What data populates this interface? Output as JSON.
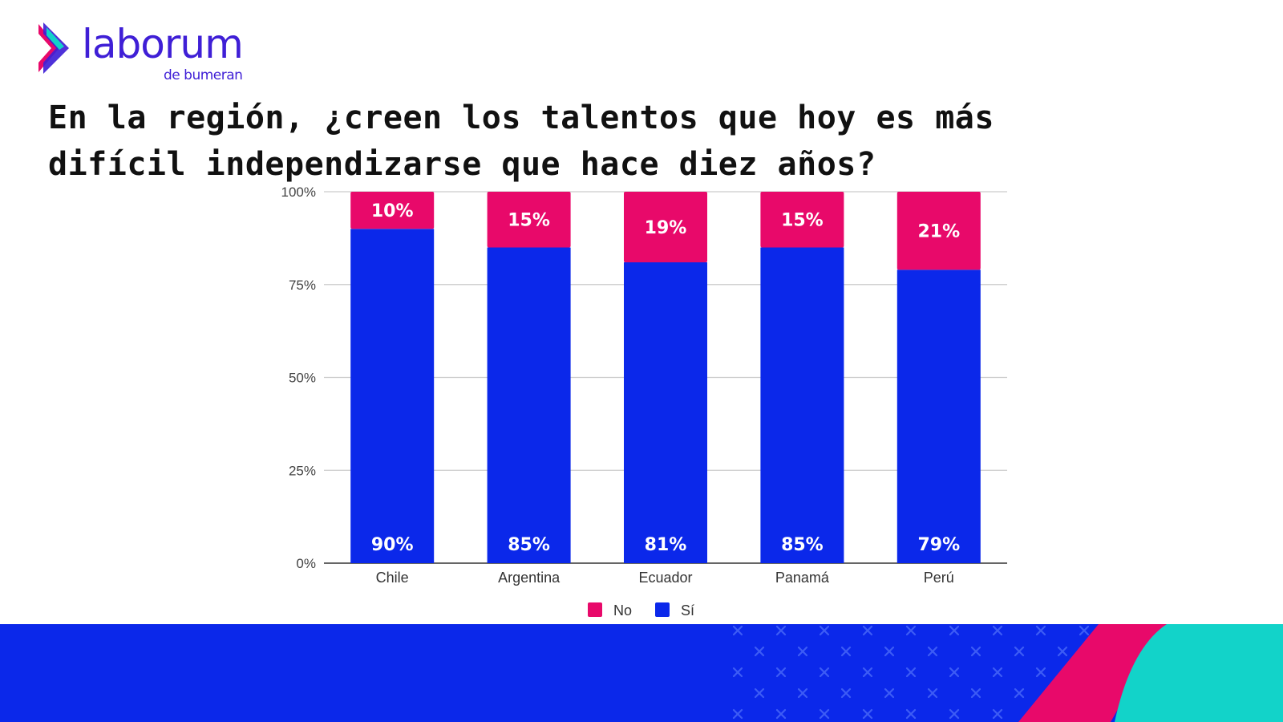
{
  "brand": {
    "name": "laborum",
    "tagline": "de bumeran",
    "colors": {
      "primary": "#3f1fd6",
      "accent": "#e8096a",
      "teal": "#12d3c9"
    }
  },
  "chart_data": {
    "type": "bar",
    "stacked": true,
    "title": "En la región, ¿creen los talentos que hoy es más difícil independizarse que hace diez años?",
    "categories": [
      "Chile",
      "Argentina",
      "Ecuador",
      "Panamá",
      "Perú"
    ],
    "series": [
      {
        "name": "Sí",
        "color": "#0b28ea",
        "values": [
          90,
          85,
          81,
          85,
          79
        ],
        "labels": [
          "90%",
          "85%",
          "81%",
          "85%",
          "79%"
        ]
      },
      {
        "name": "No",
        "color": "#e8096a",
        "values": [
          10,
          15,
          19,
          15,
          21
        ],
        "labels": [
          "10%",
          "15%",
          "19%",
          "15%",
          "21%"
        ]
      }
    ],
    "ylim": [
      0,
      100
    ],
    "yticks": [
      0,
      25,
      50,
      75,
      100
    ],
    "ytick_labels": [
      "0%",
      "25%",
      "50%",
      "75%",
      "100%"
    ],
    "legend": {
      "position": "bottom",
      "order": [
        "No",
        "Sí"
      ]
    },
    "grid": true
  }
}
